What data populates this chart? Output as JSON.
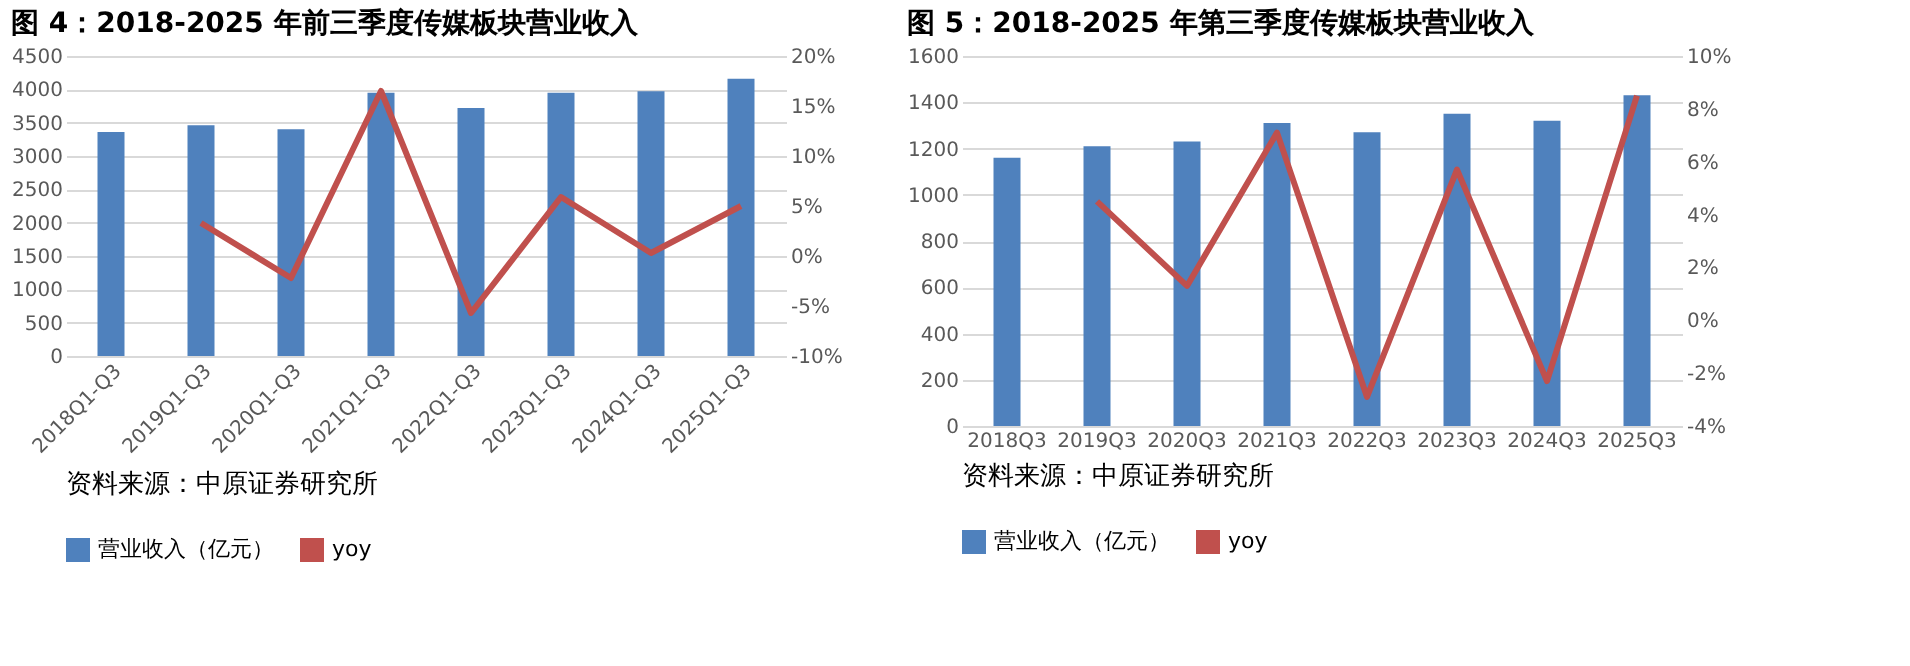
{
  "chart_data": [
    {
      "type": "bar",
      "title": "图 4：2018-2025 年前三季度传媒板块营业收入",
      "categories": [
        "2018Q1-Q3",
        "2019Q1-Q3",
        "2020Q1-Q3",
        "2021Q1-Q3",
        "2022Q1-Q3",
        "2023Q1-Q3",
        "2024Q1-Q3",
        "2025Q1-Q3"
      ],
      "series": [
        {
          "name": "营业收入（亿元）",
          "color": "#4f81bd",
          "values": [
            3360,
            3460,
            3400,
            3950,
            3720,
            3950,
            3970,
            4160
          ]
        },
        {
          "name": "yoy",
          "type": "line",
          "axis": "y2",
          "color": "#c0504d",
          "values": [
            null,
            3.3,
            -2.2,
            16.5,
            -5.7,
            5.9,
            0.3,
            5.0
          ]
        }
      ],
      "ylim": [
        0,
        4500
      ],
      "yticks": [
        0,
        500,
        1000,
        1500,
        2000,
        2500,
        3000,
        3500,
        4000,
        4500
      ],
      "y2lim": [
        -10,
        20
      ],
      "y2ticks": [
        {
          "value": -10,
          "label": "-10%"
        },
        {
          "value": -5,
          "label": "-5%"
        },
        {
          "value": 0,
          "label": "0%"
        },
        {
          "value": 5,
          "label": "5%"
        },
        {
          "value": 10,
          "label": "10%"
        },
        {
          "value": 15,
          "label": "15%"
        },
        {
          "value": 20,
          "label": "20%"
        }
      ],
      "grid": "y",
      "legend": "bottom",
      "annotations": [
        "资料来源：中原证券研究所"
      ]
    },
    {
      "type": "bar",
      "title": "图 5：2018-2025 年第三季度传媒板块营业收入",
      "categories": [
        "2018Q3",
        "2019Q3",
        "2020Q3",
        "2021Q3",
        "2022Q3",
        "2023Q3",
        "2024Q3",
        "2025Q3"
      ],
      "series": [
        {
          "name": "营业收入（亿元）",
          "color": "#4f81bd",
          "values": [
            1160,
            1210,
            1230,
            1310,
            1270,
            1350,
            1320,
            1430
          ]
        },
        {
          "name": "yoy",
          "type": "line",
          "axis": "y2",
          "color": "#c0504d",
          "values": [
            null,
            4.5,
            1.3,
            7.1,
            -2.9,
            5.7,
            -2.3,
            8.5
          ]
        }
      ],
      "ylim": [
        0,
        1600
      ],
      "yticks": [
        0,
        200,
        400,
        600,
        800,
        1000,
        1200,
        1400,
        1600
      ],
      "y2lim": [
        -4,
        10
      ],
      "y2ticks": [
        {
          "value": -4,
          "label": "-4%"
        },
        {
          "value": -2,
          "label": "-2%"
        },
        {
          "value": 0,
          "label": "0%"
        },
        {
          "value": 2,
          "label": "2%"
        },
        {
          "value": 4,
          "label": "4%"
        },
        {
          "value": 6,
          "label": "6%"
        },
        {
          "value": 8,
          "label": "8%"
        },
        {
          "value": 10,
          "label": "10%"
        }
      ],
      "grid": "y",
      "legend": "bottom",
      "annotations": [
        "资料来源：中原证券研究所"
      ]
    }
  ]
}
